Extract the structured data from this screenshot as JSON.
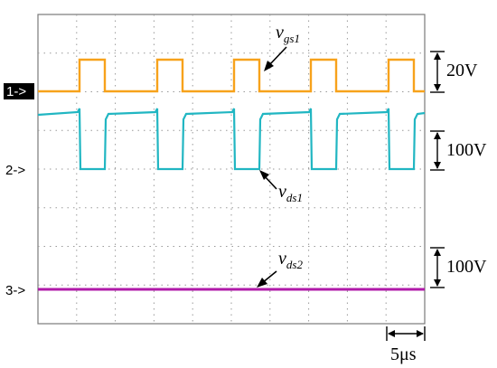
{
  "channels": {
    "ch1": {
      "marker": "1->",
      "color": "#f7a21b"
    },
    "ch2": {
      "marker": "2->",
      "color": "#21b6c2"
    },
    "ch3": {
      "marker": "3->",
      "color": "#b01aa8"
    }
  },
  "signal_labels": {
    "vgs1": {
      "main": "v",
      "sub": "gs1"
    },
    "vds1": {
      "main": "v",
      "sub": "ds1"
    },
    "vds2": {
      "main": "v",
      "sub": "ds2"
    }
  },
  "scales": {
    "ch1": "20V",
    "ch2": "100V",
    "ch3": "100V",
    "time": "5μs"
  }
}
